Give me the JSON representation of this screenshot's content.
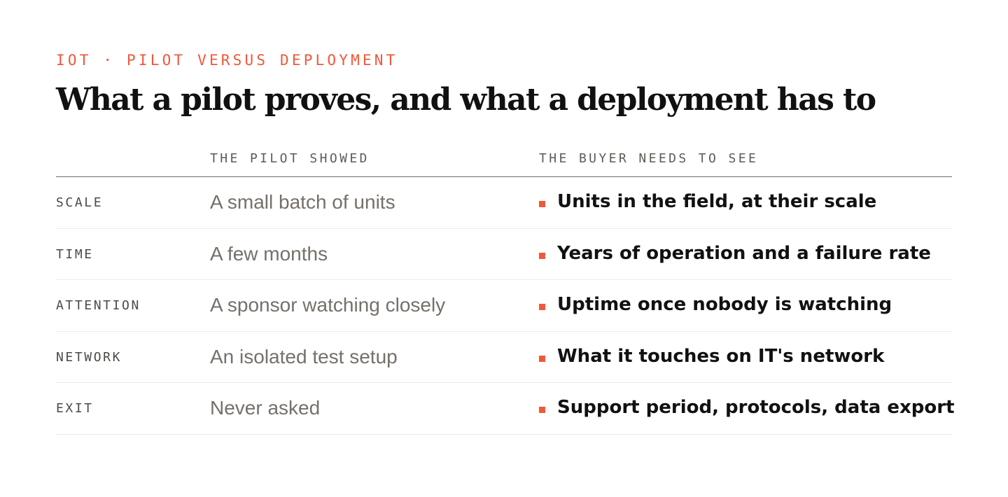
{
  "header": {
    "eyebrow": "IOT · PILOT VERSUS DEPLOYMENT",
    "title": "What a pilot proves, and what a deployment has to"
  },
  "table": {
    "columns": [
      "",
      "THE PILOT SHOWED",
      "THE BUYER NEEDS TO SEE"
    ],
    "rows": [
      {
        "label": "SCALE",
        "pilot": "A small batch of units",
        "buyer": "Units in the field, at their scale"
      },
      {
        "label": "TIME",
        "pilot": "A few months",
        "buyer": "Years of operation and a failure rate"
      },
      {
        "label": "ATTENTION",
        "pilot": "A sponsor watching closely",
        "buyer": "Uptime once nobody is watching"
      },
      {
        "label": "NETWORK",
        "pilot": "An isolated test setup",
        "buyer": "What it touches on IT's network"
      },
      {
        "label": "EXIT",
        "pilot": "Never asked",
        "buyer": "Support period, protocols, data export"
      }
    ]
  },
  "colors": {
    "accent": "#f0583a",
    "title": "#111111",
    "muted": "#75706a",
    "rule": "#6b6b6b"
  }
}
